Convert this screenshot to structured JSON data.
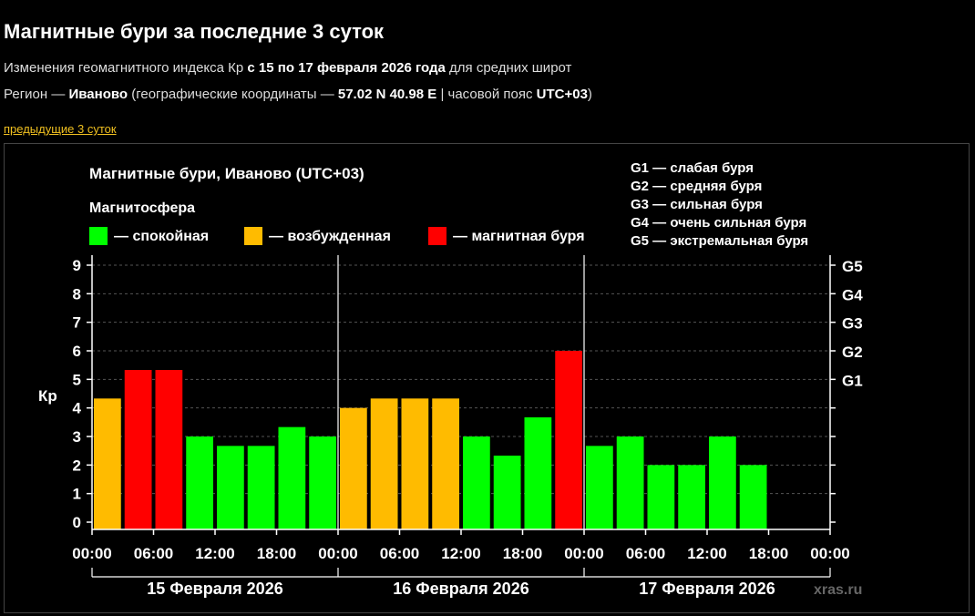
{
  "header": {
    "title": "Магнитные бури за последние 3 суток",
    "line1_prefix": "Изменения геомагнитного индекса Кр ",
    "line1_bold": "с 15 по 17 февраля 2026 года",
    "line1_suffix": " для средних широт",
    "line2_prefix": "Регион — ",
    "line2_region": "Иваново",
    "line2_mid": " (географические координаты — ",
    "line2_coords": "57.02 N 40.98 E",
    "line2_mid2": " | часовой пояс ",
    "line2_tz": "UTC+03",
    "line2_suffix": ")",
    "prev_link": "предыдущие 3 суток"
  },
  "chart_data": {
    "type": "bar",
    "title": "Магнитные бури, Иваново (UTC+03)",
    "legend_title": "Магнитосфера",
    "legend": [
      {
        "label": "— спокойная",
        "color": "#00ff00"
      },
      {
        "label": "— возбужденная",
        "color": "#ffbb00"
      },
      {
        "label": "— магнитная буря",
        "color": "#ff0000"
      }
    ],
    "g_scale": [
      "G1 — слабая буря",
      "G2 — средняя буря",
      "G3 — сильная буря",
      "G4 — очень сильная буря",
      "G5 — экстремальная буря"
    ],
    "ylabel": "Кр",
    "ylim": [
      0,
      9
    ],
    "yticks": [
      0,
      1,
      2,
      3,
      4,
      5,
      6,
      7,
      8,
      9
    ],
    "right_ticks": [
      {
        "y": 5,
        "label": "G1"
      },
      {
        "y": 6,
        "label": "G2"
      },
      {
        "y": 7,
        "label": "G3"
      },
      {
        "y": 8,
        "label": "G4"
      },
      {
        "y": 9,
        "label": "G5"
      }
    ],
    "xtick_labels": [
      "00:00",
      "06:00",
      "12:00",
      "18:00",
      "00:00",
      "06:00",
      "12:00",
      "18:00",
      "00:00",
      "06:00",
      "12:00",
      "18:00",
      "00:00"
    ],
    "days": [
      "15 Февраля 2026",
      "16 Февраля 2026",
      "17 Февраля 2026"
    ],
    "values": [
      4.33,
      5.33,
      5.33,
      3.0,
      2.67,
      2.67,
      3.33,
      3.0,
      4.0,
      4.33,
      4.33,
      4.33,
      3.0,
      2.33,
      3.67,
      6.0,
      2.67,
      3.0,
      2.0,
      2.0,
      3.0,
      2.0
    ],
    "colors": {
      "quiet": "#00ff00",
      "active": "#ffbb00",
      "storm": "#ff0000"
    },
    "watermark": "xras.ru",
    "grid": true
  }
}
